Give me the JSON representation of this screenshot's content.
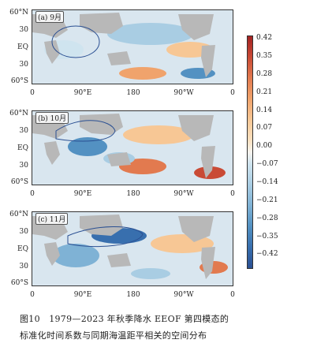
{
  "panels": [
    {
      "label": "(a) 9月"
    },
    {
      "label": "(b) 10月"
    },
    {
      "label": "(c) 11月"
    }
  ],
  "lat_labels": [
    "60°N",
    "30",
    "EQ",
    "30",
    "60°S"
  ],
  "lon_labels": [
    "0",
    "90°E",
    "180",
    "90°W",
    "0"
  ],
  "colorbar_labels": [
    "0.42",
    "0.35",
    "0.28",
    "0.21",
    "0.14",
    "0.07",
    "0.00",
    "−0.07",
    "−0.14",
    "−0.21",
    "−0.28",
    "−0.35",
    "−0.42"
  ],
  "caption": {
    "line1": "图10　1979—2023 年秋季降水 EEOF 第四模态的",
    "line2": "标准化时间系数与同期海温距平相关的空间分布"
  },
  "colors": {
    "land": "#b8b8b8",
    "positive": "#c94a35",
    "negative": "#386fae",
    "neutral": "#d9e6ef"
  }
}
